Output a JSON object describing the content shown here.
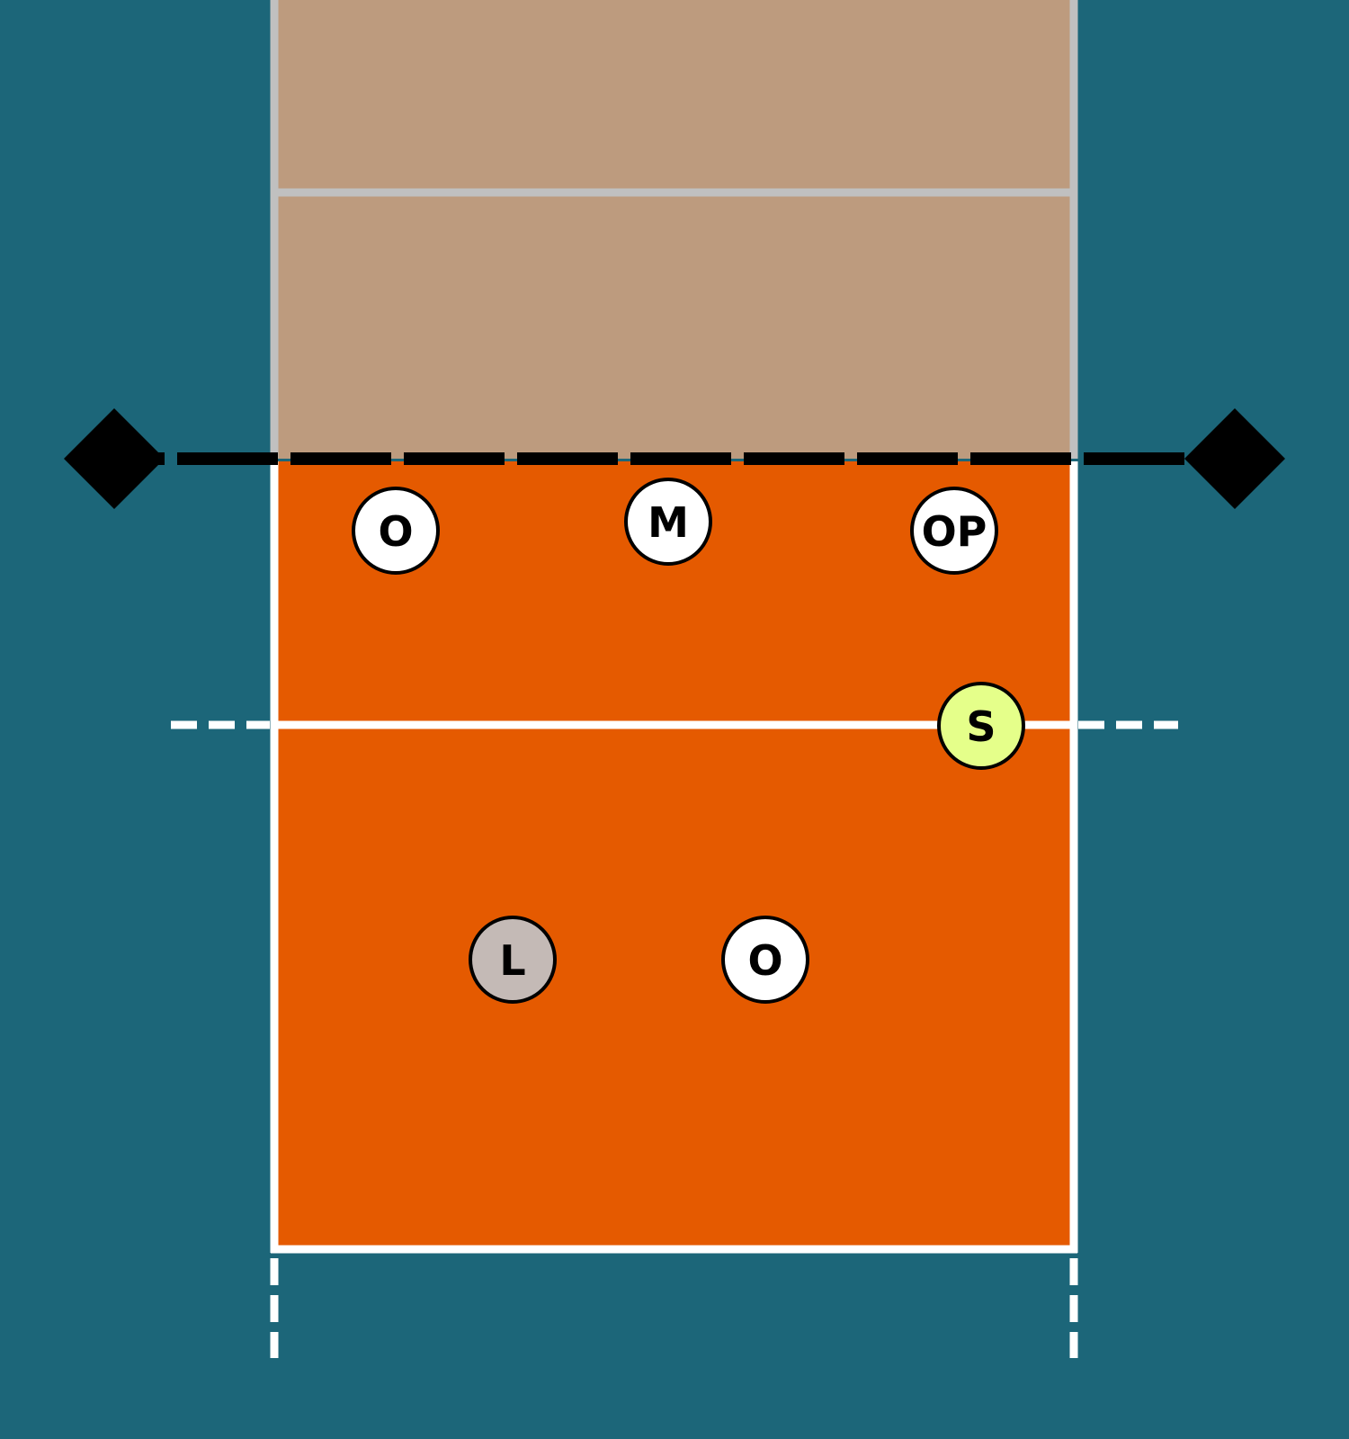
{
  "colors": {
    "background": "#1c6679",
    "opponent_court": "#bd9b7e",
    "opponent_lines": "#c0c0c0",
    "home_court": "#e55a00",
    "home_lines": "#ffffff",
    "net": "#000000",
    "player_default": "#ffffff",
    "player_setter": "#e5ff8a",
    "player_libero": "#c4bab6"
  },
  "players": [
    {
      "label": "O",
      "role": "outside-hitter",
      "color": "#ffffff"
    },
    {
      "label": "M",
      "role": "middle-blocker",
      "color": "#ffffff"
    },
    {
      "label": "OP",
      "role": "opposite",
      "color": "#ffffff"
    },
    {
      "label": "S",
      "role": "setter",
      "color": "#e5ff8a"
    },
    {
      "label": "L",
      "role": "libero",
      "color": "#c4bab6"
    },
    {
      "label": "O",
      "role": "outside-hitter",
      "color": "#ffffff"
    }
  ]
}
